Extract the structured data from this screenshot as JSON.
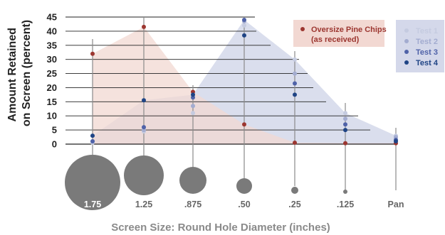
{
  "chart_data": {
    "type": "area",
    "title": "",
    "xlabel": "Screen Size: Round Hole Diameter (inches)",
    "ylabel_lines": [
      "Amount Retained",
      "on Screen (percent)"
    ],
    "categories": [
      "1.75",
      "1.25",
      ".875",
      ".50",
      ".25",
      ".125",
      "Pan"
    ],
    "yticks": [
      0,
      5,
      10,
      15,
      20,
      25,
      30,
      35,
      40,
      45
    ],
    "ylim": [
      0,
      45
    ],
    "series": [
      {
        "name": "Oversize Pine Chips",
        "name_line2": "(as received)",
        "color": "#9c3630",
        "values": [
          32,
          41.5,
          18.5,
          7,
          0.5,
          0.3,
          0.3
        ]
      },
      {
        "name": "Test 1",
        "color": "#c5cbe0",
        "values": [
          0.5,
          4.5,
          11,
          42,
          30,
          11,
          3
        ]
      },
      {
        "name": "Test 2",
        "color": "#a3acd0",
        "values": [
          1,
          5,
          13.5,
          43.5,
          25,
          9,
          2.5
        ]
      },
      {
        "name": "Test 3",
        "color": "#4f62a8",
        "values": [
          1,
          6,
          16.5,
          44,
          21.5,
          7,
          1.5
        ]
      },
      {
        "name": "Test 4",
        "color": "#1f4485",
        "values": [
          3,
          15.5,
          17.5,
          38.5,
          17.5,
          5,
          1
        ]
      }
    ],
    "envelope_color": "#d4d8ea",
    "oversize_fill_color": "#f2d8d2",
    "legend_position": "top-right"
  }
}
